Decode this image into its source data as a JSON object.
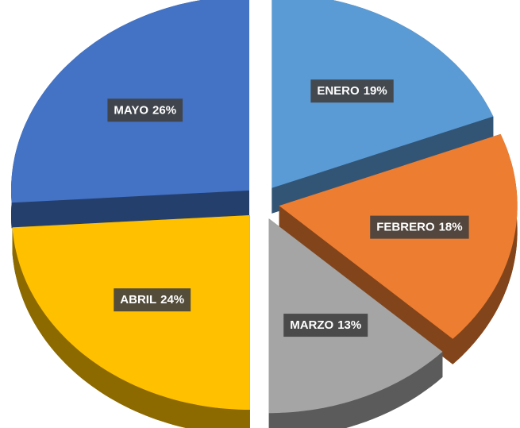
{
  "chart_data": {
    "type": "pie",
    "categories": [
      "ENERO",
      "FEBRERO",
      "MARZO",
      "ABRIL",
      "MAYO"
    ],
    "values": [
      19,
      18,
      13,
      24,
      26
    ],
    "value_labels": [
      "19%",
      "18%",
      "13%",
      "24%",
      "26%"
    ],
    "colors": [
      "#5b9bd5",
      "#ed7d31",
      "#a5a5a5",
      "#ffc000",
      "#4472c4"
    ]
  }
}
